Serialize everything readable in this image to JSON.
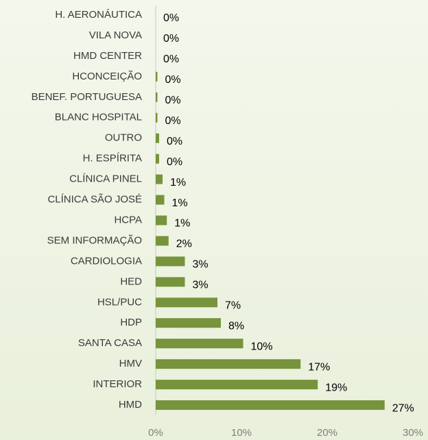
{
  "chart_data": {
    "type": "hbar",
    "categories": [
      "H. AERONÁUTICA",
      "VILA NOVA",
      "HMD CENTER",
      "HCONCEIÇÃO",
      "BENEF. PORTUGUESA",
      "BLANC HOSPITAL",
      "OUTRO",
      "H. ESPÍRITA",
      "CLÍNICA PINEL",
      "CLÍNICA SÃO JOSÉ",
      "HCPA",
      "SEM INFORMAÇÃO",
      "CARDIOLOGIA",
      "HED",
      "HSL/PUC",
      "HDP",
      "SANTA CASA",
      "HMV",
      "INTERIOR",
      "HMD"
    ],
    "values": [
      0,
      0,
      0,
      0.2,
      0.2,
      0.2,
      0.4,
      0.4,
      0.8,
      1.0,
      1.3,
      1.5,
      3.4,
      3.4,
      7.2,
      7.6,
      10.2,
      16.9,
      18.9,
      26.7
    ],
    "value_labels": [
      "0%",
      "0%",
      "0%",
      "0%",
      "0%",
      "0%",
      "0%",
      "0%",
      "1%",
      "1%",
      "1%",
      "2%",
      "3%",
      "3%",
      "7%",
      "8%",
      "10%",
      "17%",
      "19%",
      "27%"
    ],
    "color": "#77933c",
    "xlim": [
      0,
      30
    ],
    "xticks": [
      {
        "value": 0,
        "label": "0%"
      },
      {
        "value": 10,
        "label": "10%"
      },
      {
        "value": 20,
        "label": "20%"
      },
      {
        "value": 30,
        "label": "30%"
      }
    ]
  }
}
